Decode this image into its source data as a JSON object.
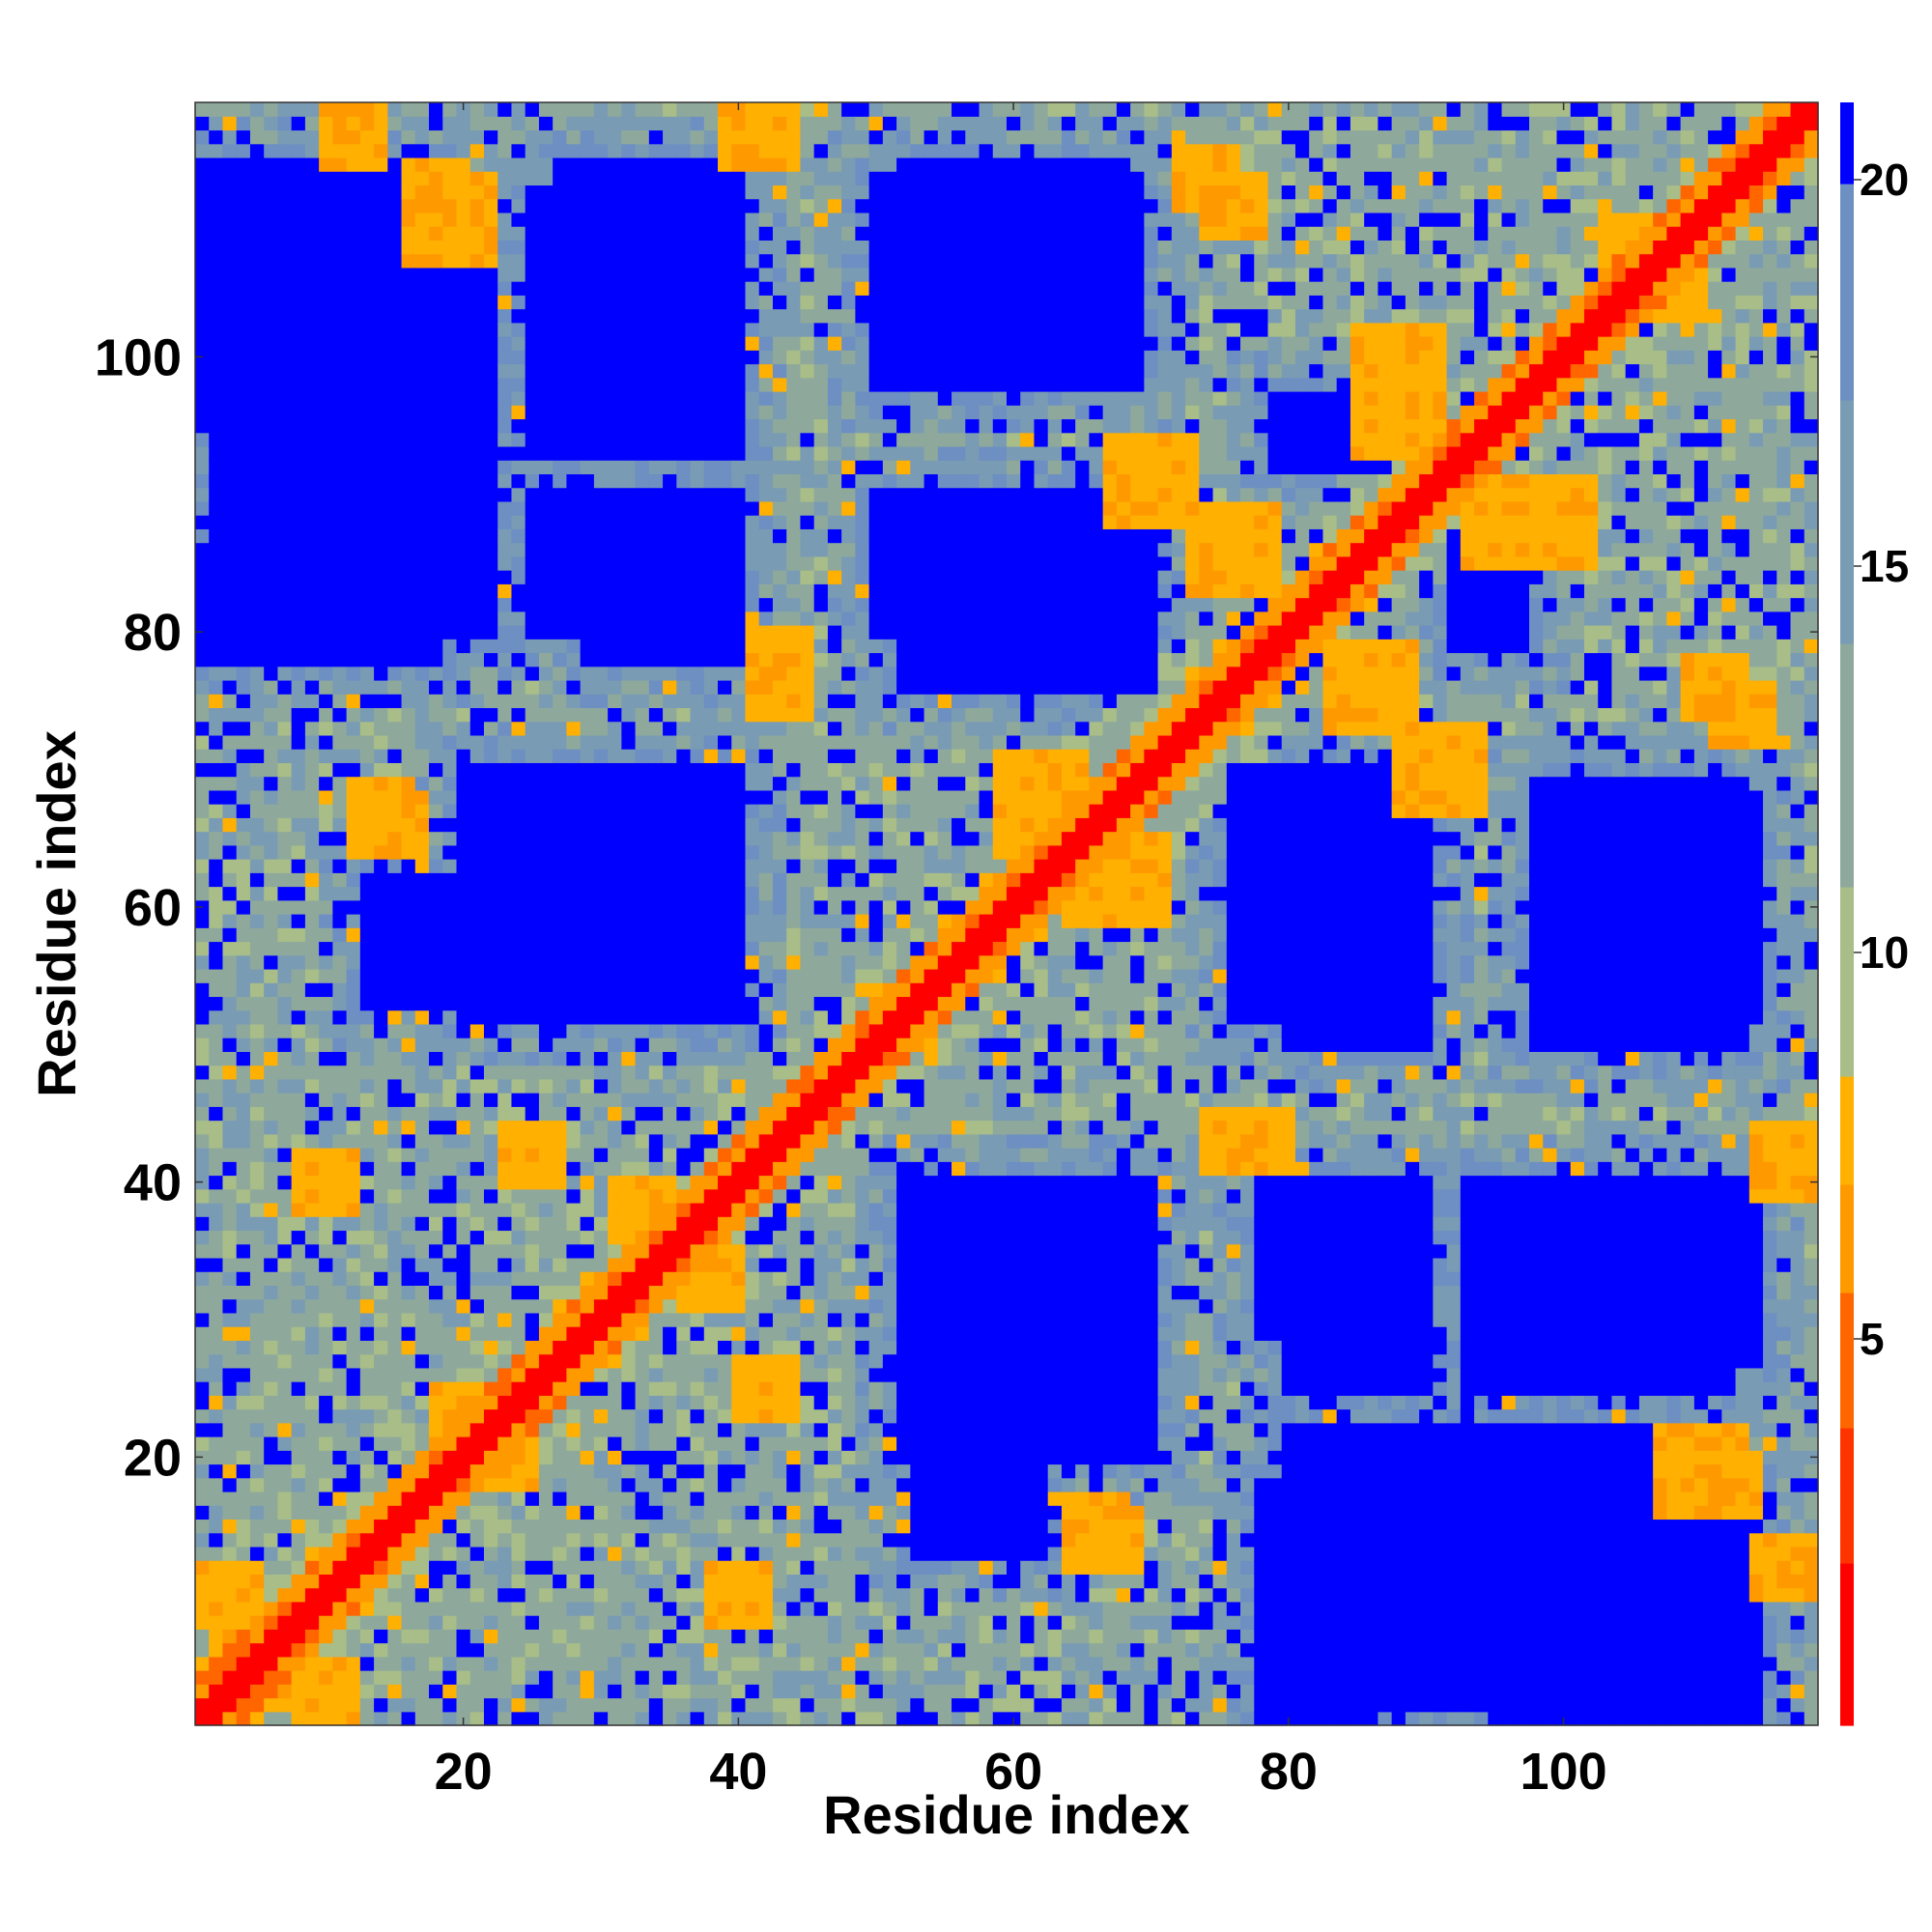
{
  "chart_data": {
    "type": "heatmap",
    "title": "",
    "xlabel": "Residue index",
    "ylabel": "Residue index",
    "n_residues": 118,
    "x_ticks": [
      20,
      40,
      60,
      80,
      100
    ],
    "y_ticks": [
      20,
      40,
      60,
      80,
      100
    ],
    "xlim": [
      1,
      118
    ],
    "ylim": [
      1,
      118
    ],
    "colorbar": {
      "ticks": [
        5,
        10,
        15,
        20
      ],
      "range": [
        0,
        21
      ],
      "colors": [
        {
          "max": 2,
          "color": "#ff0000"
        },
        {
          "max": 4,
          "color": "#ff3300"
        },
        {
          "max": 5.5,
          "color": "#ff6600"
        },
        {
          "max": 7,
          "color": "#ff9900"
        },
        {
          "max": 8.5,
          "color": "#ffb000"
        },
        {
          "max": 11,
          "color": "#a8bd88"
        },
        {
          "max": 14,
          "color": "#8ea99c"
        },
        {
          "max": 17,
          "color": "#7a9bb4"
        },
        {
          "max": 20,
          "color": "#6d8fc2"
        },
        {
          "max": 999,
          "color": "#0000ff"
        }
      ]
    },
    "description_values": "symmetric pairwise C-alpha distance map (distance values by residue pair)",
    "diagonal_band": {
      "value": 1.5
    },
    "blue_blocks": [
      {
        "x": [
          1,
          18
        ],
        "y": [
          95,
          114
        ]
      },
      {
        "x": [
          27,
          40
        ],
        "y": [
          97,
          114
        ]
      },
      {
        "x": [
          52,
          68
        ],
        "y": [
          99,
          114
        ]
      },
      {
        "x": [
          1,
          18
        ],
        "y": [
          78,
          86
        ]
      },
      {
        "x": [
          29,
          40
        ],
        "y": [
          78,
          86
        ]
      },
      {
        "x": [
          52,
          70
        ],
        "y": [
          76,
          88
        ]
      },
      {
        "x": [
          79,
          87
        ],
        "y": [
          92,
          95
        ]
      },
      {
        "x": [
          93,
          97
        ],
        "y": [
          79,
          85
        ]
      },
      {
        "x": [
          80,
          90
        ],
        "y": [
          50,
          68
        ]
      },
      {
        "x": [
          98,
          113
        ],
        "y": [
          50,
          69
        ]
      },
      {
        "x": [
          13,
          39
        ],
        "y": [
          53,
          62
        ]
      },
      {
        "x": [
          52,
          70
        ],
        "y": [
          20,
          40
        ]
      },
      {
        "x": [
          80,
          90
        ],
        "y": [
          25,
          40
        ]
      },
      {
        "x": [
          93,
          112
        ],
        "y": [
          25,
          40
        ]
      },
      {
        "x": [
          80,
          112
        ],
        "y": [
          2,
          22
        ]
      }
    ],
    "orange_contacts": [
      {
        "x": 5,
        "y": 5,
        "w": 3
      },
      {
        "x": 10,
        "y": 3,
        "w": 2
      },
      {
        "x": 3,
        "y": 10,
        "w": 2
      },
      {
        "x": 12,
        "y": 116,
        "w": 2
      },
      {
        "x": 19,
        "y": 110,
        "w": 3
      },
      {
        "x": 42,
        "y": 116,
        "w": 2
      },
      {
        "x": 76,
        "y": 111,
        "w": 2
      },
      {
        "x": 43,
        "y": 76,
        "w": 2
      },
      {
        "x": 78,
        "y": 43,
        "w": 2
      },
      {
        "x": 52,
        "y": 52,
        "w": 2
      },
      {
        "x": 62,
        "y": 67,
        "w": 3
      },
      {
        "x": 68,
        "y": 62,
        "w": 3
      },
      {
        "x": 70,
        "y": 91,
        "w": 3
      },
      {
        "x": 88,
        "y": 99,
        "w": 3
      },
      {
        "x": 96,
        "y": 88,
        "w": 3
      },
      {
        "x": 86,
        "y": 76,
        "w": 3
      },
      {
        "x": 90,
        "y": 71,
        "w": 2
      },
      {
        "x": 105,
        "y": 108,
        "w": 2
      },
      {
        "x": 113,
        "y": 74,
        "w": 2
      },
      {
        "x": 116,
        "y": 41,
        "w": 2
      },
      {
        "x": 112,
        "y": 18,
        "w": 2
      },
      {
        "x": 116,
        "y": 12,
        "w": 2
      },
      {
        "x": 66,
        "y": 15,
        "w": 2
      },
      {
        "x": 14,
        "y": 67,
        "w": 2
      },
      {
        "x": 10,
        "y": 40,
        "w": 2
      },
      {
        "x": 25,
        "y": 42,
        "w": 2
      },
      {
        "x": 38,
        "y": 33,
        "w": 2
      },
      {
        "x": 33,
        "y": 38,
        "w": 2
      },
      {
        "x": 20,
        "y": 23,
        "w": 2
      }
    ]
  }
}
